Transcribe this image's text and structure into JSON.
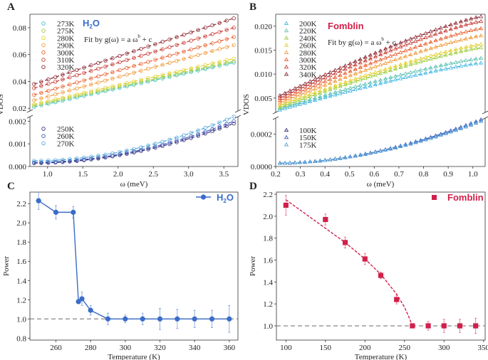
{
  "figure": {
    "panels": [
      "A",
      "B",
      "C",
      "D"
    ]
  },
  "chart_data": [
    {
      "panel": "A",
      "type": "scatter",
      "title": "H2O",
      "title_color": "#3a6cc8",
      "annotation": "Fit by g(ω) = a ω^b + c",
      "xlabel": "ω (meV)",
      "ylabel": "VDOS",
      "xlim": [
        0.75,
        3.7
      ],
      "x_ticks": [
        "1.0",
        "1.5",
        "2.0",
        "2.5",
        "3.0",
        "3.5"
      ],
      "broken_axis": true,
      "upper": {
        "ylim": [
          0.018,
          0.09
        ],
        "y_ticks": [
          "0.02",
          "0.04",
          "0.06",
          "0.08"
        ],
        "series": [
          {
            "name": "273K",
            "color": "#3ec2c9",
            "y_start": 0.021,
            "y_end": 0.054
          },
          {
            "name": "275K",
            "color": "#9ccd3f",
            "y_start": 0.022,
            "y_end": 0.055
          },
          {
            "name": "280K",
            "color": "#e3cf2a",
            "y_start": 0.023,
            "y_end": 0.057
          },
          {
            "name": "290K",
            "color": "#f39a3b",
            "y_start": 0.026,
            "y_end": 0.067
          },
          {
            "name": "300K",
            "color": "#ea6030",
            "y_start": 0.03,
            "y_end": 0.073
          },
          {
            "name": "310K",
            "color": "#c93d36",
            "y_start": 0.035,
            "y_end": 0.08
          },
          {
            "name": "320K",
            "color": "#8e2a33",
            "y_start": 0.038,
            "y_end": 0.087
          }
        ]
      },
      "lower": {
        "ylim": [
          0.0,
          0.0022
        ],
        "y_ticks": [
          "0.000",
          "0.001",
          "0.002"
        ],
        "series": [
          {
            "name": "250K",
            "color": "#3b2f7a",
            "y_start": 0.00015,
            "y_end": 0.0019
          },
          {
            "name": "260K",
            "color": "#3d58b8",
            "y_start": 0.00018,
            "y_end": 0.002
          },
          {
            "name": "270K",
            "color": "#54a7dd",
            "y_start": 0.00025,
            "y_end": 0.0022
          }
        ]
      }
    },
    {
      "panel": "B",
      "type": "scatter",
      "title": "Fomblin",
      "title_color": "#d0204a",
      "annotation": "Fit by g(ω) = a ω^b + c",
      "xlabel": "ω (meV)",
      "ylabel": "VDOS",
      "xlim": [
        0.2,
        1.05
      ],
      "x_ticks": [
        "0.2",
        "0.3",
        "0.4",
        "0.5",
        "0.6",
        "0.7",
        "0.8",
        "0.9",
        "1.0"
      ],
      "broken_axis": true,
      "upper": {
        "ylim": [
          0.002,
          0.0225
        ],
        "y_ticks": [
          "0.005",
          "0.010",
          "0.015",
          "0.020"
        ],
        "series": [
          {
            "name": "200K",
            "color": "#45b8e6",
            "y_start": 0.0025,
            "y_end": 0.0123
          },
          {
            "name": "220K",
            "color": "#5fc3b3",
            "y_start": 0.0028,
            "y_end": 0.0133
          },
          {
            "name": "240K",
            "color": "#9ccd3f",
            "y_start": 0.0031,
            "y_end": 0.0155
          },
          {
            "name": "260K",
            "color": "#e3cf2a",
            "y_start": 0.0035,
            "y_end": 0.0162
          },
          {
            "name": "280K",
            "color": "#f39a3b",
            "y_start": 0.004,
            "y_end": 0.018
          },
          {
            "name": "300K",
            "color": "#ea6030",
            "y_start": 0.0045,
            "y_end": 0.0195
          },
          {
            "name": "320K",
            "color": "#c93d36",
            "y_start": 0.005,
            "y_end": 0.021
          },
          {
            "name": "340K",
            "color": "#8e2a33",
            "y_start": 0.0055,
            "y_end": 0.022
          }
        ]
      },
      "lower": {
        "ylim": [
          0.0,
          0.0003
        ],
        "y_ticks": [
          "0.0000",
          "0.0002"
        ],
        "series": [
          {
            "name": "100K",
            "color": "#3b2f7a",
            "y_start": 2e-05,
            "y_end": 0.00028
          },
          {
            "name": "150K",
            "color": "#3d58b8",
            "y_start": 2e-05,
            "y_end": 0.00029
          },
          {
            "name": "175K",
            "color": "#54a7dd",
            "y_start": 2e-05,
            "y_end": 0.00028
          }
        ]
      }
    },
    {
      "panel": "C",
      "type": "line",
      "legend": "H2O",
      "legend_location": "top-right",
      "color": "#3a6cc8",
      "xlabel": "Temperature (K)",
      "ylabel": "Power",
      "xlim": [
        245,
        365
      ],
      "ylim": [
        0.78,
        2.32
      ],
      "x_ticks": [
        "260",
        "280",
        "300",
        "320",
        "340",
        "360"
      ],
      "y_ticks": [
        "0.8",
        "1.0",
        "1.2",
        "1.4",
        "1.6",
        "1.8",
        "2.0",
        "2.2"
      ],
      "reference_line": 1.0,
      "x": [
        250,
        260,
        270,
        273,
        275,
        280,
        290,
        300,
        310,
        320,
        330,
        340,
        350,
        360
      ],
      "y": [
        2.23,
        2.11,
        2.11,
        1.18,
        1.21,
        1.09,
        1.0,
        1.0,
        1.0,
        1.0,
        1.0,
        1.0,
        1.0,
        1.0
      ],
      "err": [
        0.09,
        0.07,
        0.06,
        0.02,
        0.07,
        0.05,
        0.06,
        0.04,
        0.06,
        0.11,
        0.1,
        0.09,
        0.09,
        0.14
      ]
    },
    {
      "panel": "D",
      "type": "scatter",
      "legend": "Fomblin",
      "legend_location": "top-right",
      "color": "#d0204a",
      "xlabel": "Temperature (K)",
      "ylabel": "Power",
      "xlim": [
        88,
        352
      ],
      "ylim": [
        0.87,
        2.22
      ],
      "x_ticks": [
        "100",
        "150",
        "200",
        "250",
        "300",
        "350"
      ],
      "y_ticks": [
        "1.0",
        "1.2",
        "1.4",
        "1.6",
        "1.8",
        "2.0",
        "2.2"
      ],
      "reference_line": 1.0,
      "x": [
        100,
        150,
        175,
        200,
        220,
        240,
        260,
        280,
        300,
        320,
        340
      ],
      "y": [
        2.1,
        1.97,
        1.76,
        1.61,
        1.46,
        1.24,
        1.0,
        1.0,
        1.0,
        1.0,
        1.0
      ],
      "err": [
        0.09,
        0.05,
        0.05,
        0.05,
        0.03,
        0.04,
        0.02,
        0.04,
        0.06,
        0.06,
        0.07
      ],
      "fit_curve": {
        "x": [
          100,
          125,
          150,
          175,
          200,
          220,
          240,
          250,
          255,
          260
        ],
        "y": [
          2.15,
          2.02,
          1.89,
          1.76,
          1.61,
          1.47,
          1.29,
          1.17,
          1.09,
          1.0
        ]
      }
    }
  ]
}
